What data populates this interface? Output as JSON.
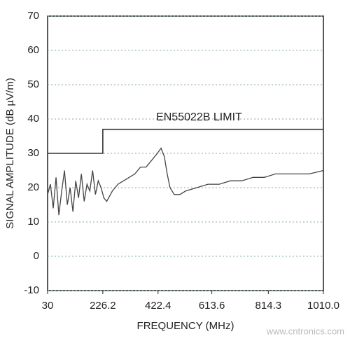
{
  "chart_data": {
    "type": "line",
    "x_label": "FREQUENCY (MHz)",
    "y_label": "SIGNAL AMPLITUDE (dB µV/m)",
    "watermark": "www.cntronics.com",
    "xlim": [
      30,
      1010
    ],
    "ylim": [
      -10,
      70
    ],
    "xticks": [
      30,
      226.2,
      422.4,
      613.6,
      814.3,
      {
        "value": 1010,
        "label": "1010.0"
      }
    ],
    "yticks": [
      -10,
      0,
      10,
      20,
      30,
      40,
      50,
      60,
      70
    ],
    "grid": true,
    "series": [
      {
        "name": "EN55022B LIMIT",
        "color": "#333333",
        "x": [
          30,
          226.2,
          226.2,
          1010
        ],
        "values": [
          30,
          30,
          37,
          37
        ]
      },
      {
        "color": "#444444",
        "x": [
          30,
          40,
          50,
          60,
          70,
          80,
          90,
          100,
          110,
          120,
          130,
          140,
          150,
          160,
          170,
          180,
          190,
          200,
          210,
          220,
          230,
          240,
          260,
          280,
          300,
          320,
          340,
          360,
          380,
          400,
          420,
          433,
          445,
          455,
          465,
          480,
          500,
          520,
          560,
          600,
          640,
          680,
          720,
          760,
          800,
          840,
          880,
          920,
          960,
          1010
        ],
        "values": [
          18,
          21,
          14,
          23,
          12,
          19,
          25,
          15,
          20,
          13,
          22,
          17,
          24,
          16,
          21,
          19,
          25,
          18,
          22,
          20,
          17,
          16,
          19,
          21,
          22,
          23,
          24,
          26,
          26,
          28,
          30,
          31.5,
          29,
          24,
          20,
          18,
          18,
          19,
          20,
          21,
          21,
          22,
          22,
          23,
          23,
          24,
          24,
          24,
          24,
          25
        ]
      }
    ]
  }
}
